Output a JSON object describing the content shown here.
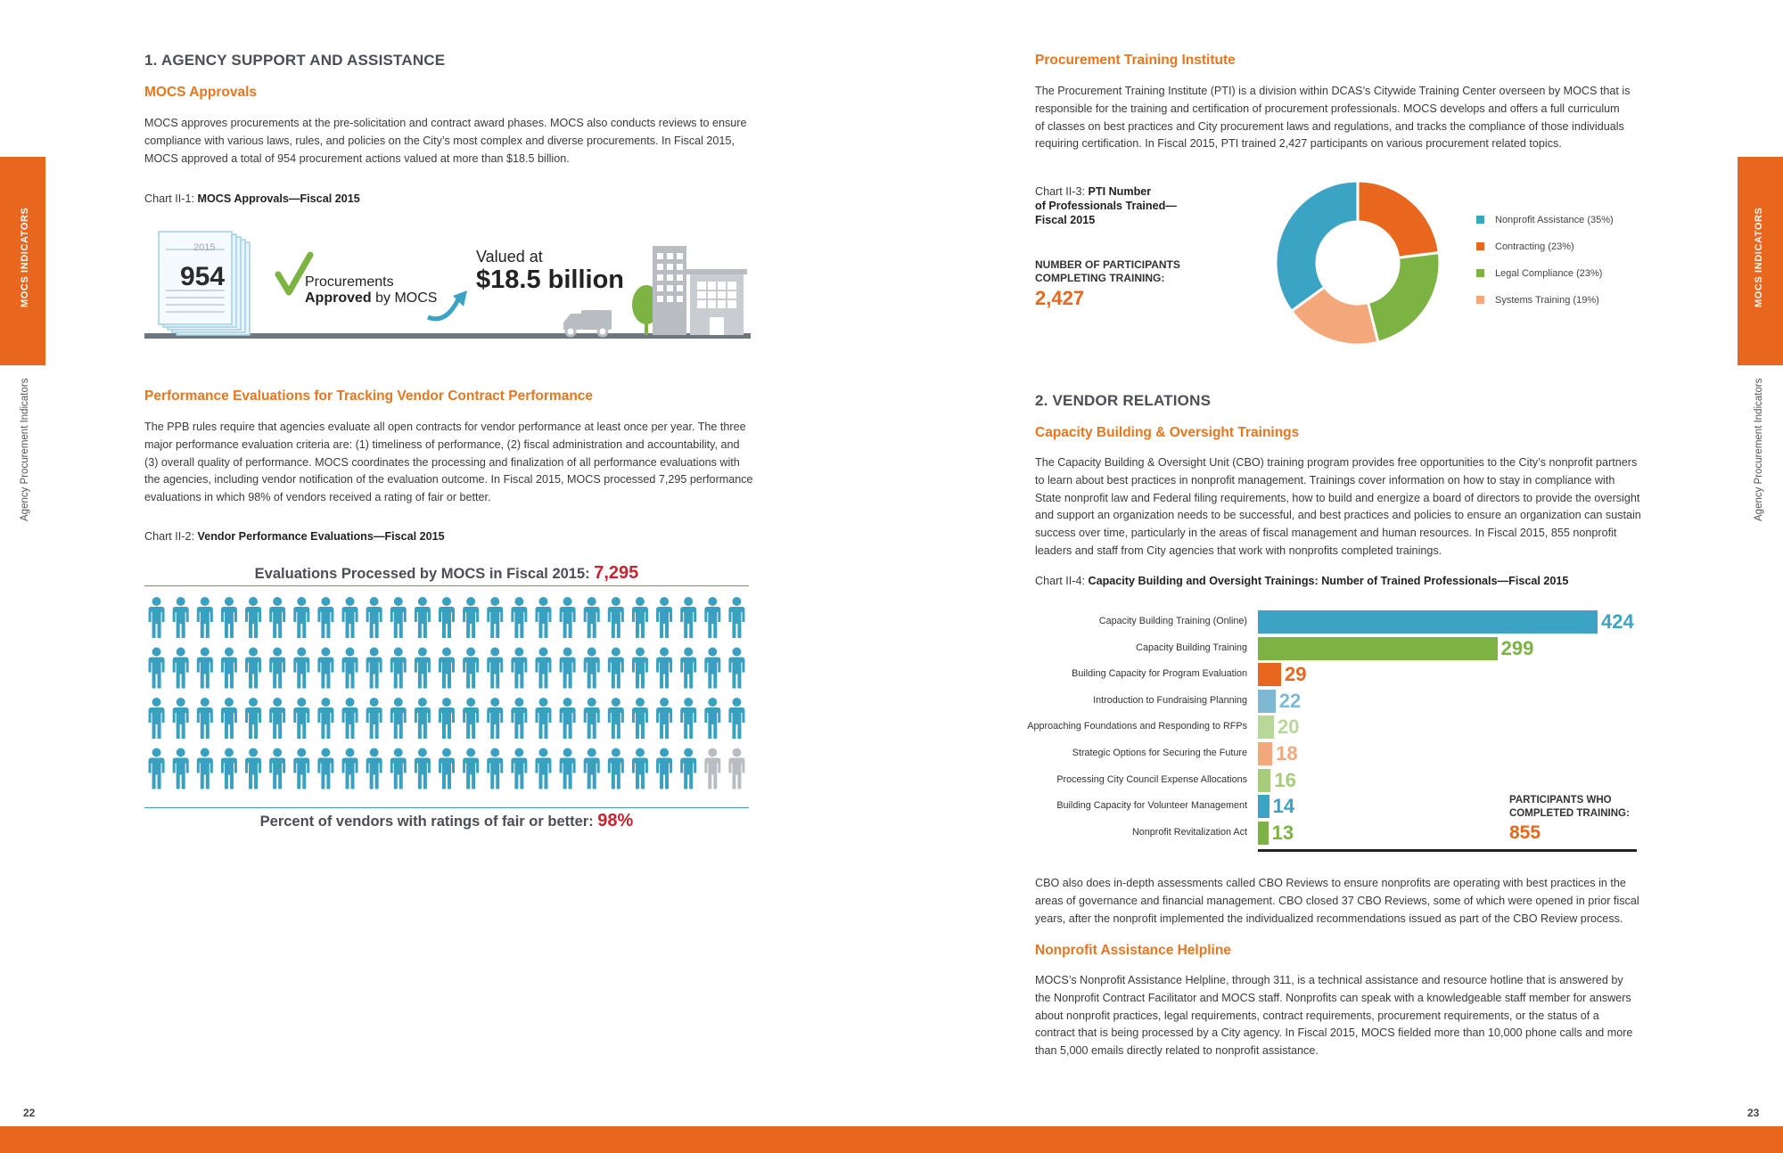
{
  "left": {
    "section_title": "1. AGENCY SUPPORT AND ASSISTANCE",
    "mocs_approvals": {
      "heading": "MOCS Approvals",
      "lines": [
        "MOCS approves procurements at the pre-solicitation and contract award phases. MOCS also conducts reviews to ensure",
        "compliance with various laws, rules, and policies on the City’s most complex and diverse procurements. In Fiscal 2015,",
        "MOCS approved a total of 954 procurement actions valued at more than $18.5 billion."
      ]
    },
    "chart1": {
      "caption_prefix": "Chart II-1: ",
      "caption_bold": "MOCS Approvals—Fiscal 2015",
      "year": "2015",
      "count": "954",
      "label_line1": "Procurements",
      "label_bold": "Approved",
      "label_rest": " by MOCS",
      "valued_at": "Valued at",
      "amount": "$18.5 billion"
    },
    "perf_eval": {
      "heading": "Performance Evaluations for Tracking Vendor Contract Performance",
      "lines": [
        "The PPB rules require that agencies evaluate all open contracts for vendor performance at least once per year. The three",
        "major performance evaluation criteria are: (1) timeliness of performance, (2) fiscal administration and accountability, and",
        "(3) overall quality of performance. MOCS coordinates the processing and finalization of all performance evaluations with",
        "the agencies, including vendor notification of the evaluation outcome. In Fiscal 2015, MOCS processed 7,295 performance",
        "evaluations in which 98% of vendors received a rating of fair or better."
      ]
    },
    "chart2": {
      "caption_prefix": "Chart II-2: ",
      "caption_bold": "Vendor Performance Evaluations—Fiscal 2015",
      "title_text": "Evaluations Processed by MOCS in Fiscal 2015: ",
      "title_value": "7,295",
      "footer_text": "Percent of vendors with ratings of fair or better: ",
      "footer_value": "98%",
      "percent_fair_or_better": 98,
      "icon_color": "#3aa0c0",
      "icon_gray": "#b9bdc1"
    },
    "side_tab": "MOCS INDICATORS",
    "side_label": "Agency Procurement Indicators",
    "page_number": "22"
  },
  "right": {
    "pti": {
      "heading": "Procurement Training Institute",
      "lines": [
        "The Procurement Training Institute (PTI) is a division within DCAS’s Citywide Training Center overseen by MOCS that is",
        "responsible for the training and certification of procurement professionals. MOCS develops and offers a full curriculum",
        "of classes on best practices and City procurement laws and regulations, and tracks the compliance of those individuals",
        "requiring certification. In Fiscal 2015, PTI trained 2,427 participants on various procurement related topics."
      ]
    },
    "chart3": {
      "caption_prefix": "Chart II-3: ",
      "caption_bold_lines": [
        "PTI Number",
        "of Professionals Trained—",
        "Fiscal 2015"
      ],
      "kpi_label_lines": [
        "NUMBER OF PARTICIPANTS",
        "COMPLETING TRAINING:"
      ],
      "kpi_value": "2,427"
    },
    "vendor_relations": {
      "section_title": "2. VENDOR RELATIONS",
      "heading": "Capacity Building & Oversight Trainings",
      "lines": [
        "The Capacity Building & Oversight Unit (CBO) training program provides free opportunities to the City’s nonprofit partners",
        "to learn about best practices in nonprofit management. Trainings cover information on how to stay in compliance with",
        "State nonprofit law and Federal filing requirements, how to build and energize a board of directors to provide the oversight",
        "and support an organization needs to be successful, and best practices and policies to ensure an organization can sustain",
        "success over time, particularly in the areas of fiscal management and human resources. In Fiscal 2015, 855 nonprofit",
        "leaders and staff from City agencies that work with nonprofits completed trainings."
      ]
    },
    "chart4": {
      "caption_prefix": "Chart II-4:  ",
      "caption_bold": "Capacity Building and Oversight Trainings: Number of Trained Professionals—Fiscal 2015",
      "total_label_lines": [
        "PARTICIPANTS WHO",
        "COMPLETED TRAINING:"
      ],
      "total_value": "855"
    },
    "cbo_reviews": {
      "lines": [
        "CBO also does in-depth assessments called CBO Reviews to ensure nonprofits are operating with best practices in the",
        "areas of governance and financial management. CBO closed 37 CBO Reviews, some of which were opened in prior fiscal",
        "years, after the nonprofit implemented the individualized recommendations issued as part of the CBO Review process."
      ]
    },
    "helpline": {
      "heading": "Nonprofit Assistance Helpline",
      "lines": [
        "MOCS’s Nonprofit Assistance Helpline, through 311, is a technical assistance and resource hotline that is answered by",
        "the Nonprofit Contract Facilitator and MOCS staff. Nonprofits can speak with a knowledgeable staff member for answers",
        "about nonprofit practices, legal requirements, contract requirements, procurement requirements, or the status of a",
        "contract that is being processed by a City agency. In Fiscal 2015, MOCS fielded more than 10,000 phone calls and more",
        "than 5,000 emails directly related to nonprofit assistance."
      ]
    },
    "side_tab": "MOCS INDICATORS",
    "side_label": "Agency Procurement Indicators",
    "page_number": "23"
  },
  "chart_data": [
    {
      "type": "pie",
      "categories": [
        "Nonprofit Assistance (35%)",
        "Contracting (23%)",
        "Legal Compliance (23%)",
        "Systems Training (19%)"
      ],
      "values": [
        35,
        23,
        23,
        19
      ],
      "colors": [
        "#3ba3c4",
        "#e8661e",
        "#7cb342",
        "#f4a77a"
      ],
      "start_series_order": [
        1,
        2,
        3,
        0
      ],
      "legend": "right"
    },
    {
      "type": "bar",
      "orientation": "horizontal",
      "categories": [
        "Capacity Building Training (Online)",
        "Capacity Building Training",
        "Building Capacity for Program Evaluation",
        "Introduction to Fundraising Planning",
        "Approaching Foundations and Responding to RFPs",
        "Strategic Options for Securing the Future",
        "Processing City Council Expense Allocations",
        "Building Capacity for Volunteer Management",
        "Nonprofit Revitalization Act"
      ],
      "values": [
        424,
        299,
        29,
        22,
        20,
        18,
        16,
        14,
        13
      ],
      "labels": [
        "424",
        "299",
        "29",
        "22",
        "20",
        "18",
        "16",
        "14",
        "13"
      ],
      "colors": [
        "#3ba3c4",
        "#7cb342",
        "#e8661e",
        "#7fb8d3",
        "#b8d89a",
        "#f4a77a",
        "#a6cc7a",
        "#3ba3c4",
        "#7cb342"
      ],
      "xlim": [
        0,
        424
      ]
    }
  ]
}
